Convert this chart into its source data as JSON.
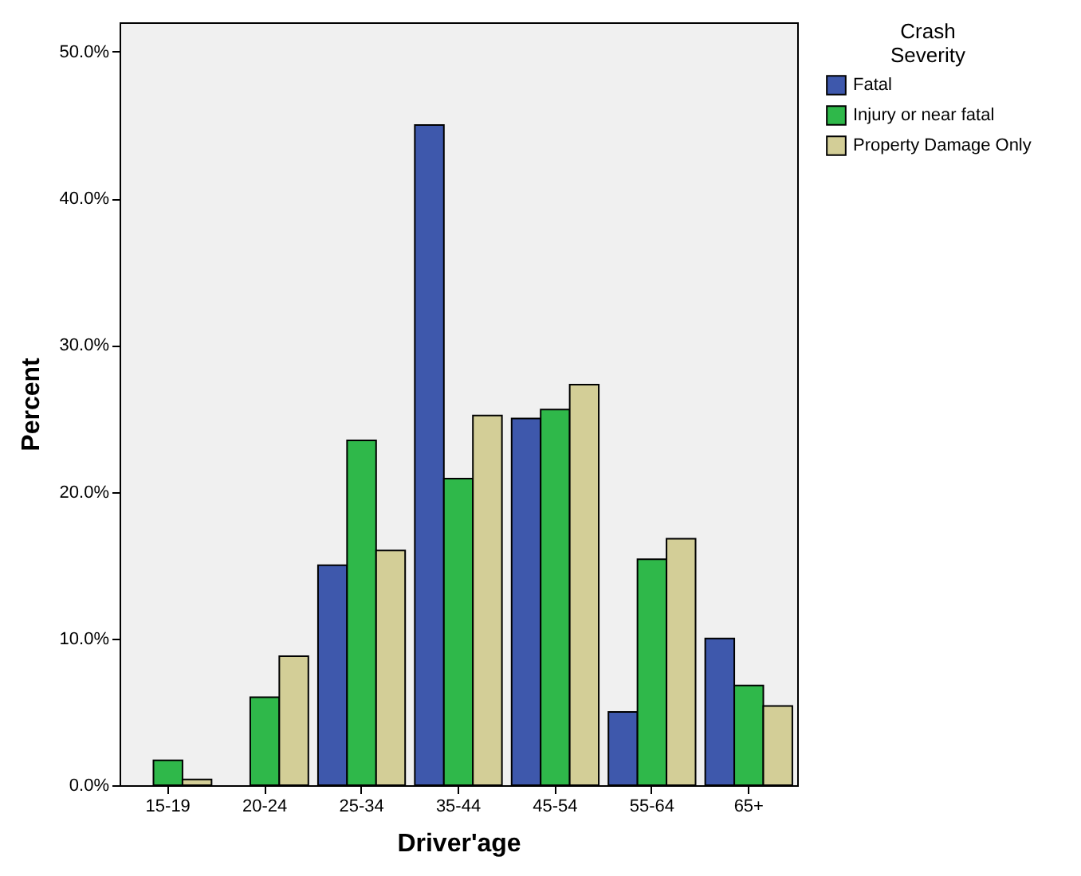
{
  "chart_data": {
    "type": "bar",
    "xlabel": "Driver'age",
    "ylabel": "Percent",
    "legend_title": "Crash\nSeverity",
    "categories": [
      "15-19",
      "20-24",
      "25-34",
      "35-44",
      "45-54",
      "55-64",
      "65+"
    ],
    "series": [
      {
        "name": "Fatal",
        "color": "#3e58ac",
        "values": [
          0,
          0,
          15.0,
          45.0,
          25.0,
          5.0,
          10.0
        ]
      },
      {
        "name": "Injury or near fatal",
        "color": "#2fb84a",
        "values": [
          1.7,
          6.0,
          23.5,
          20.9,
          25.6,
          15.4,
          6.8
        ]
      },
      {
        "name": "Property Damage Only",
        "color": "#d3ce97",
        "values": [
          0.4,
          8.8,
          16.0,
          25.2,
          27.3,
          16.8,
          5.4
        ]
      }
    ],
    "ylim": [
      0,
      52
    ],
    "yticks": [
      {
        "value": 0,
        "label": "0.0%"
      },
      {
        "value": 10,
        "label": "10.0%"
      },
      {
        "value": 20,
        "label": "20.0%"
      },
      {
        "value": 30,
        "label": "30.0%"
      },
      {
        "value": 40,
        "label": "40.0%"
      },
      {
        "value": 50,
        "label": "50.0%"
      }
    ],
    "grid": false,
    "legend": "top right"
  }
}
